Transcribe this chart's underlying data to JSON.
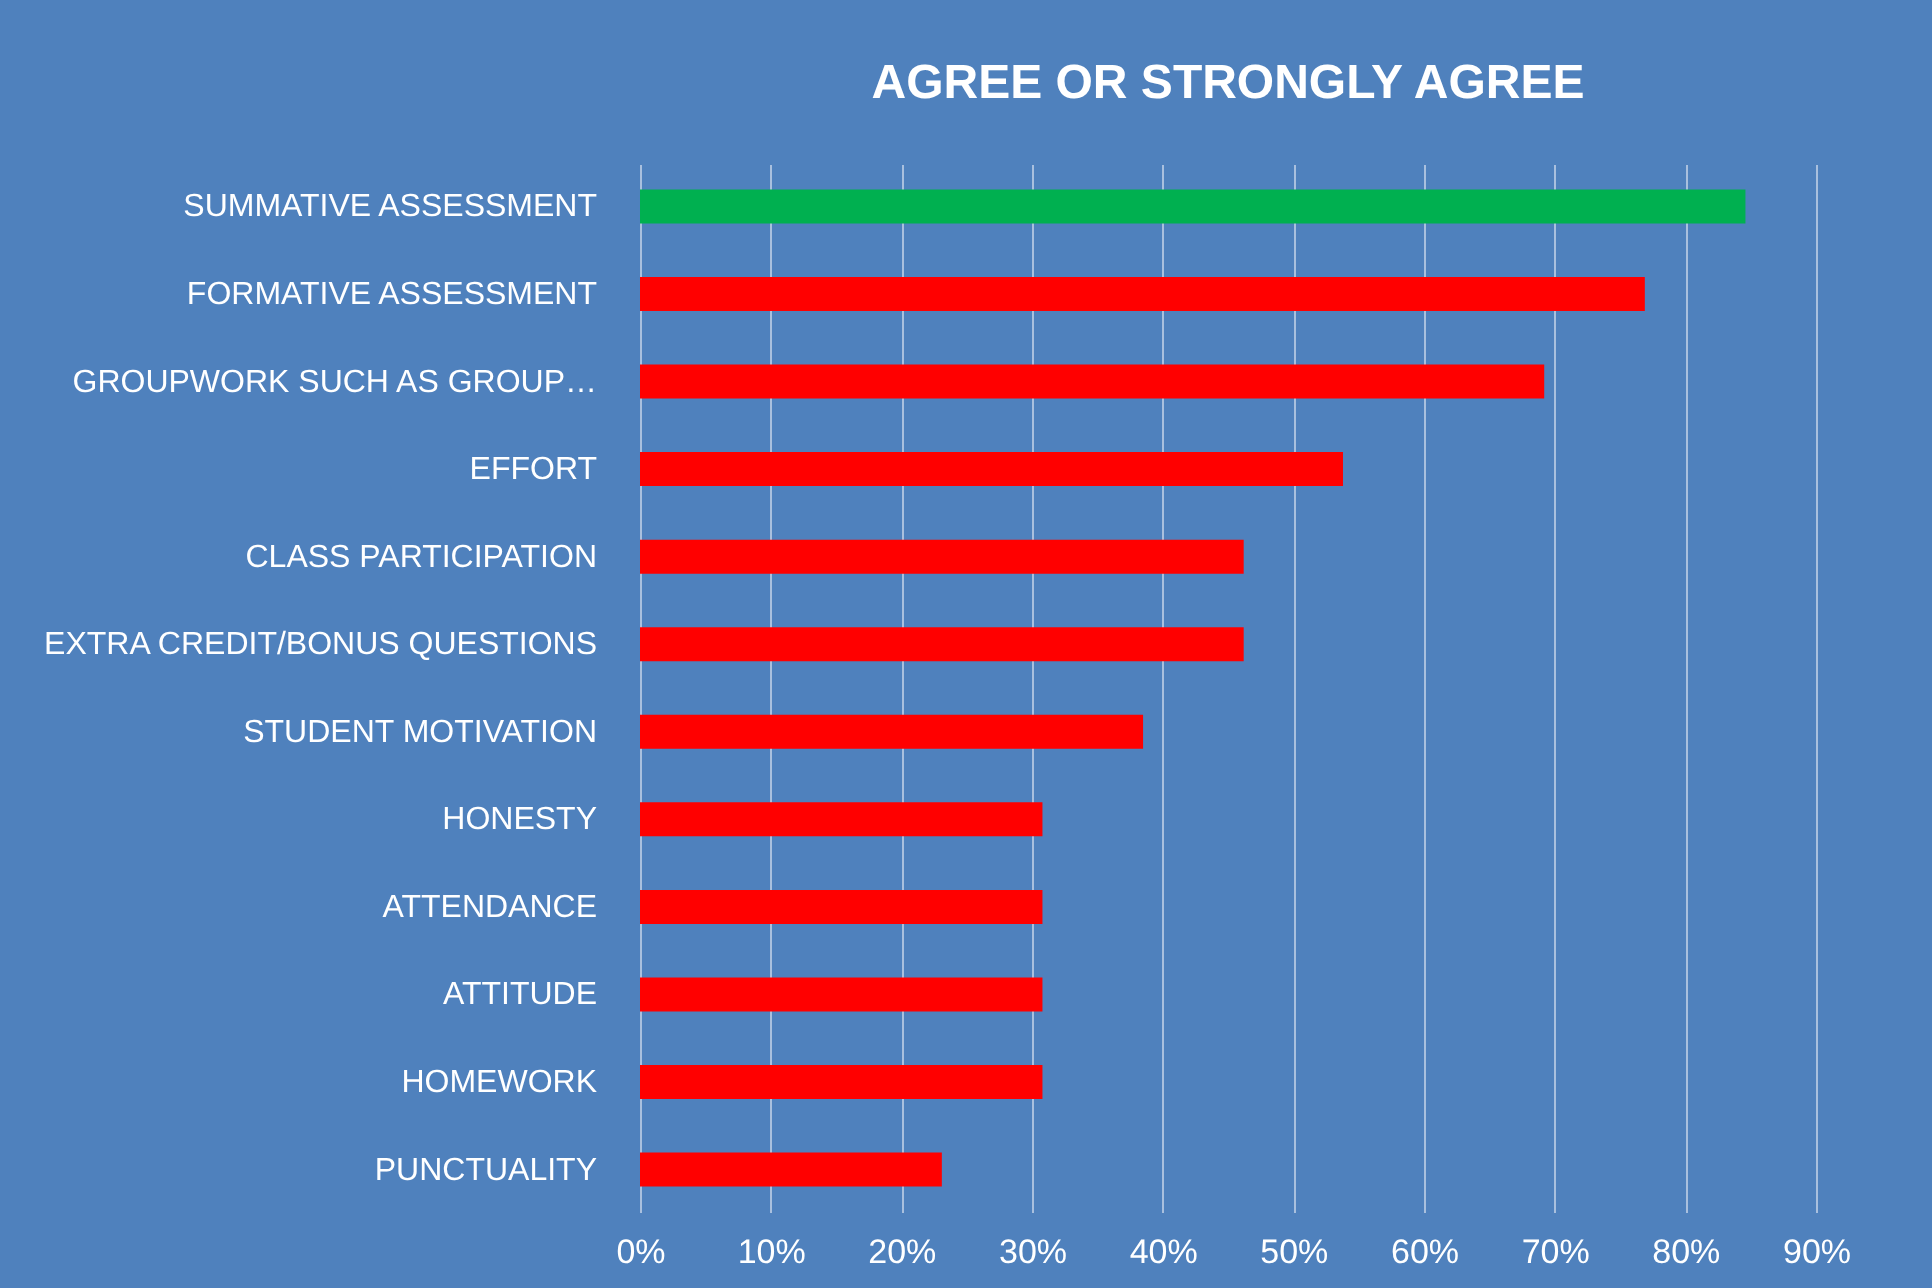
{
  "chart_data": {
    "type": "bar",
    "orientation": "horizontal",
    "title": "AGREE OR STRONGLY AGREE",
    "categories": [
      "SUMMATIVE ASSESSMENT",
      "FORMATIVE ASSESSMENT",
      "GROUPWORK SUCH AS GROUP…",
      "EFFORT",
      "CLASS PARTICIPATION",
      "EXTRA CREDIT/BONUS QUESTIONS",
      "STUDENT MOTIVATION",
      "HONESTY",
      "ATTENDANCE",
      "ATTITUDE",
      "HOMEWORK",
      "PUNCTUALITY"
    ],
    "values": [
      84.6,
      76.9,
      69.2,
      53.8,
      46.2,
      46.2,
      38.5,
      30.8,
      30.8,
      30.8,
      30.8,
      23.1
    ],
    "colors": [
      "#00b050",
      "#ff0000",
      "#ff0000",
      "#ff0000",
      "#ff0000",
      "#ff0000",
      "#ff0000",
      "#ff0000",
      "#ff0000",
      "#ff0000",
      "#ff0000",
      "#ff0000"
    ],
    "xlim": [
      0,
      90
    ],
    "xticks": [
      {
        "value": 0,
        "label": "0%"
      },
      {
        "value": 10,
        "label": "10%"
      },
      {
        "value": 20,
        "label": "20%"
      },
      {
        "value": 30,
        "label": "30%"
      },
      {
        "value": 40,
        "label": "40%"
      },
      {
        "value": 50,
        "label": "50%"
      },
      {
        "value": 60,
        "label": "60%"
      },
      {
        "value": 70,
        "label": "70%"
      },
      {
        "value": 80,
        "label": "80%"
      },
      {
        "value": 90,
        "label": "90%"
      }
    ],
    "grid": "x"
  }
}
